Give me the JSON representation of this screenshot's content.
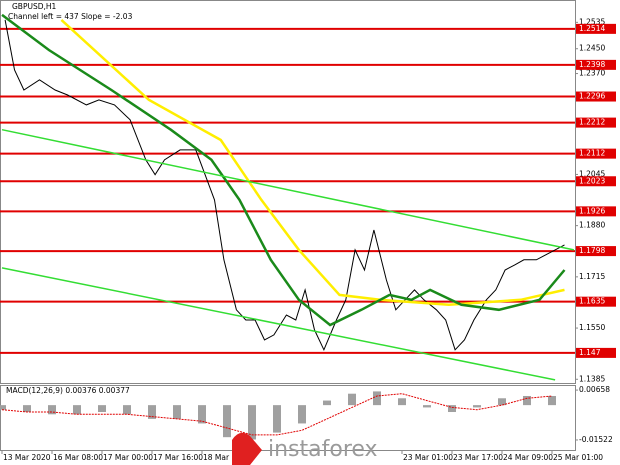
{
  "chart_data": [
    {
      "type": "line",
      "title": "GBPUSD,H1",
      "subtitle": "Channel left = 437 Slope = -2.03",
      "xlim": [
        -0.64,
        183.36
      ],
      "xticks": [
        {
          "value": 0,
          "label": "13 Mar 2020"
        },
        {
          "value": 16,
          "label": "16 Mar 08:00"
        },
        {
          "value": 32,
          "label": "17 Mar 00:00"
        },
        {
          "value": 48,
          "label": "17 Mar 16:00"
        },
        {
          "value": 64,
          "label": "18 Mar 08:00"
        },
        {
          "value": 128,
          "label": "23 Mar 01:00"
        },
        {
          "value": 144,
          "label": "23 Mar 17:00"
        },
        {
          "value": 160,
          "label": "24 Mar 09:00"
        },
        {
          "value": 176,
          "label": "25 Mar 01:00"
        }
      ],
      "ylim": [
        1.1373,
        1.2607
      ],
      "yticks": [
        1.2535,
        {
          "value": 1.245,
          "label": "1.2450"
        },
        {
          "value": 1.237,
          "label": "1.2370"
        },
        1.2045,
        {
          "value": 1.188,
          "label": "1.1880"
        },
        1.1715,
        {
          "value": 1.155,
          "label": "1.1550"
        },
        1.1385
      ],
      "levels": [
        1.2514,
        1.2398,
        1.2296,
        1.2212,
        1.2112,
        1.2023,
        1.1926,
        1.1798,
        1.1635,
        1.147
      ],
      "level_color": "#e00000",
      "series": [
        {
          "color": "#000000",
          "width": 1,
          "x": [
            1,
            4,
            7,
            12,
            17,
            21,
            27,
            31,
            36,
            41,
            46,
            49,
            52,
            57,
            62,
            65,
            68,
            71,
            75,
            78,
            81,
            84,
            87,
            91,
            94,
            97,
            100,
            103,
            107,
            110,
            113,
            116,
            119,
            123,
            126,
            129,
            132,
            135,
            139,
            142,
            145,
            148,
            151,
            155,
            158,
            161,
            164,
            167,
            171,
            174,
            177,
            180
          ],
          "values": [
            1.2543,
            1.2382,
            1.2317,
            1.235,
            1.2317,
            1.2301,
            1.2269,
            1.2285,
            1.2269,
            1.2221,
            1.2092,
            1.2044,
            1.2092,
            1.2124,
            1.2124,
            1.2044,
            1.1963,
            1.177,
            1.1609,
            1.1576,
            1.1576,
            1.1512,
            1.1528,
            1.1592,
            1.1576,
            1.1673,
            1.1544,
            1.148,
            1.1576,
            1.1641,
            1.1802,
            1.1737,
            1.1866,
            1.1705,
            1.1609,
            1.1641,
            1.1673,
            1.1641,
            1.1609,
            1.1576,
            1.148,
            1.1512,
            1.1576,
            1.1641,
            1.1673,
            1.1737,
            1.1753,
            1.177,
            1.177,
            1.1786,
            1.1802,
            1.1818
          ]
        },
        {
          "color": "#ffee00",
          "width": 2.5,
          "x": [
            19,
            47,
            70,
            83,
            95,
            108,
            121,
            143,
            166,
            180
          ],
          "values": [
            1.2543,
            1.2285,
            1.2156,
            1.1963,
            1.1802,
            1.1657,
            1.1641,
            1.1625,
            1.1641,
            1.1673
          ]
        },
        {
          "color": "#1a8a1a",
          "width": 2.5,
          "x": [
            0,
            15,
            35,
            54,
            67,
            76,
            86,
            95,
            105,
            115,
            124,
            131,
            137,
            147,
            159,
            172,
            180
          ],
          "values": [
            1.2559,
            1.2446,
            1.2317,
            1.2189,
            1.2092,
            1.1963,
            1.177,
            1.1641,
            1.156,
            1.1609,
            1.1657,
            1.1641,
            1.1673,
            1.1625,
            1.1609,
            1.1641,
            1.1737
          ]
        },
        {
          "color": "#33dd33",
          "width": 1.5,
          "x": [
            0,
            183
          ],
          "values": [
            1.2189,
            1.1802
          ]
        },
        {
          "color": "#33dd33",
          "width": 1.5,
          "x": [
            0,
            177
          ],
          "values": [
            1.1744,
            1.1383
          ]
        }
      ],
      "watermark": "instaforex"
    },
    {
      "type": "macd",
      "title": "MACD(12,26,9) 0.00376 0.00377",
      "ylim": [
        -0.0196,
        0.0088
      ],
      "yticks": [
        0.00658,
        -0.01522
      ],
      "x": [
        0,
        8,
        16,
        24,
        32,
        40,
        48,
        56,
        64,
        72,
        80,
        88,
        96,
        104,
        112,
        120,
        128,
        136,
        144,
        152,
        160,
        168,
        176
      ],
      "histogram": {
        "color": "#a0a0a0",
        "values": [
          -0.002,
          -0.003,
          -0.004,
          -0.004,
          -0.003,
          -0.004,
          -0.006,
          -0.006,
          -0.008,
          -0.014,
          -0.015,
          -0.012,
          -0.008,
          0.002,
          0.005,
          0.006,
          0.003,
          -0.001,
          -0.003,
          -0.001,
          0.003,
          0.004,
          0.004
        ]
      },
      "signal": {
        "color": "#e00000",
        "values": [
          -0.002,
          -0.003,
          -0.003,
          -0.004,
          -0.004,
          -0.004,
          -0.005,
          -0.006,
          -0.007,
          -0.01,
          -0.013,
          -0.013,
          -0.011,
          -0.006,
          -0.001,
          0.004,
          0.005,
          0.002,
          -0.001,
          -0.002,
          0,
          0.003,
          0.004
        ]
      }
    }
  ]
}
